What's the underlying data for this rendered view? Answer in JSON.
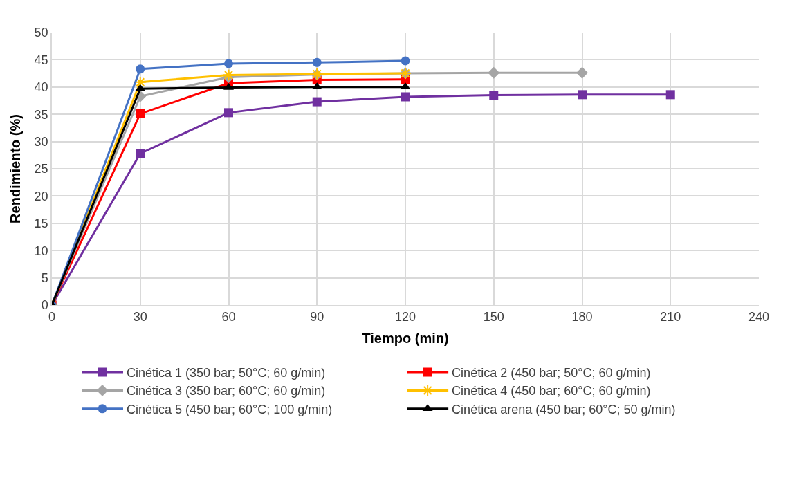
{
  "chart_data": {
    "type": "line",
    "xlabel": "Tiempo (min)",
    "ylabel": "Rendimiento (%)",
    "xlim": [
      0,
      240
    ],
    "xticks": [
      0,
      30,
      60,
      90,
      120,
      150,
      180,
      210,
      240
    ],
    "ylim": [
      0,
      50
    ],
    "yticks": [
      0,
      5,
      10,
      15,
      20,
      25,
      30,
      35,
      40,
      45,
      50
    ],
    "grid": true,
    "legend": "bottom",
    "series": [
      {
        "name": "Cinética 1 (350 bar; 50°C; 60 g/min)",
        "color": "#7030a0",
        "marker": "square",
        "x": [
          0,
          30,
          60,
          90,
          120,
          150,
          180,
          210
        ],
        "values": [
          0,
          27.8,
          35.3,
          37.3,
          38.2,
          38.5,
          38.6,
          38.6
        ]
      },
      {
        "name": "Cinética 2 (450 bar; 50°C; 60 g/min)",
        "color": "#ff0000",
        "marker": "square",
        "x": [
          0,
          30,
          60,
          90,
          120
        ],
        "values": [
          0,
          35.1,
          40.7,
          41.3,
          41.4
        ]
      },
      {
        "name": "Cinética 3 (350 bar; 60°C; 60 g/min)",
        "color": "#a5a5a5",
        "marker": "diamond",
        "x": [
          0,
          30,
          60,
          90,
          120,
          150,
          180
        ],
        "values": [
          0,
          38.3,
          41.8,
          42.3,
          42.5,
          42.6,
          42.6
        ]
      },
      {
        "name": "Cinética 4 (450 bar; 60°C; 60 g/min)",
        "color": "#ffc000",
        "marker": "cross",
        "x": [
          0,
          30,
          60,
          90,
          120
        ],
        "values": [
          0,
          40.9,
          42.2,
          42.4,
          42.5
        ]
      },
      {
        "name": "Cinética 5 (450 bar; 60°C; 100 g/min)",
        "color": "#4472c4",
        "marker": "circle",
        "x": [
          0,
          30,
          60,
          90,
          120
        ],
        "values": [
          0,
          43.3,
          44.3,
          44.5,
          44.8
        ]
      },
      {
        "name": "Cinética arena (450 bar; 60°C; 50 g/min)",
        "color": "#000000",
        "marker": "triangle",
        "x": [
          0,
          30,
          60,
          90,
          120
        ],
        "values": [
          0,
          39.7,
          39.9,
          40.0,
          40.0
        ]
      }
    ]
  }
}
